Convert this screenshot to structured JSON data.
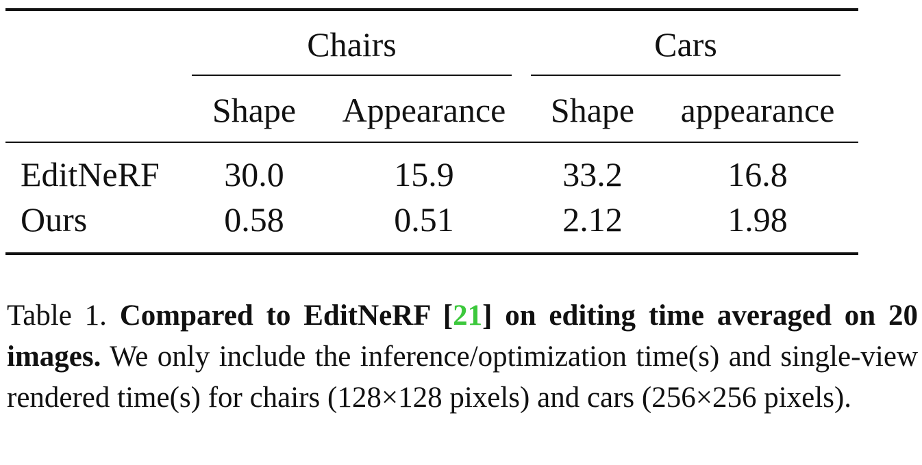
{
  "table": {
    "groups": [
      {
        "label": "Chairs"
      },
      {
        "label": "Cars"
      }
    ],
    "columns": [
      "Shape",
      "Appearance",
      "Shape",
      "appearance"
    ],
    "rows": [
      {
        "method": "EditNeRF",
        "values": [
          "30.0",
          "15.9",
          "33.2",
          "16.8"
        ]
      },
      {
        "method": "Ours",
        "values": [
          "0.58",
          "0.51",
          "2.12",
          "1.98"
        ]
      }
    ]
  },
  "caption": {
    "label": "Table 1.",
    "bold_before_cite": "Compared to EditNeRF [",
    "cite_number": "21",
    "bold_after_cite": "] on editing time averaged on 20 images.",
    "body": "We only include the inference/optimization time(s) and single-view rendered time(s) for chairs (128×128 pixels) and cars (256×256 pixels).",
    "cite_color": "#3cc83c"
  }
}
